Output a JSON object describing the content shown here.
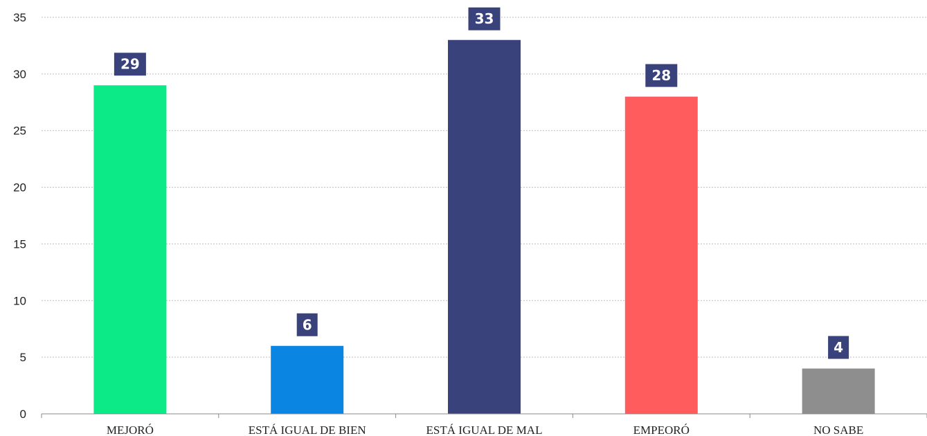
{
  "chart_data": {
    "type": "bar",
    "categories": [
      "MEJORÓ",
      "ESTÁ IGUAL DE BIEN",
      "ESTÁ IGUAL DE MAL",
      "EMPEORÓ",
      "NO SABE"
    ],
    "values": [
      29,
      6,
      33,
      28,
      4
    ],
    "data_labels": [
      "29",
      "6",
      "33",
      "28",
      "4"
    ],
    "ylim": [
      0,
      35
    ],
    "yticks": [
      0,
      5,
      10,
      15,
      20,
      25,
      30,
      35
    ],
    "grid": true,
    "legend": "none",
    "title": "",
    "xlabel": "",
    "ylabel": "",
    "colors": {
      "bars": [
        "#0BEA86",
        "#0A86E2",
        "#39427A",
        "#FF5D5D",
        "#8E8E8E"
      ],
      "label_background": "#39427A",
      "label_text": "#FFFFFF",
      "grid": "#BBBBBB",
      "axis": "#888888"
    }
  }
}
